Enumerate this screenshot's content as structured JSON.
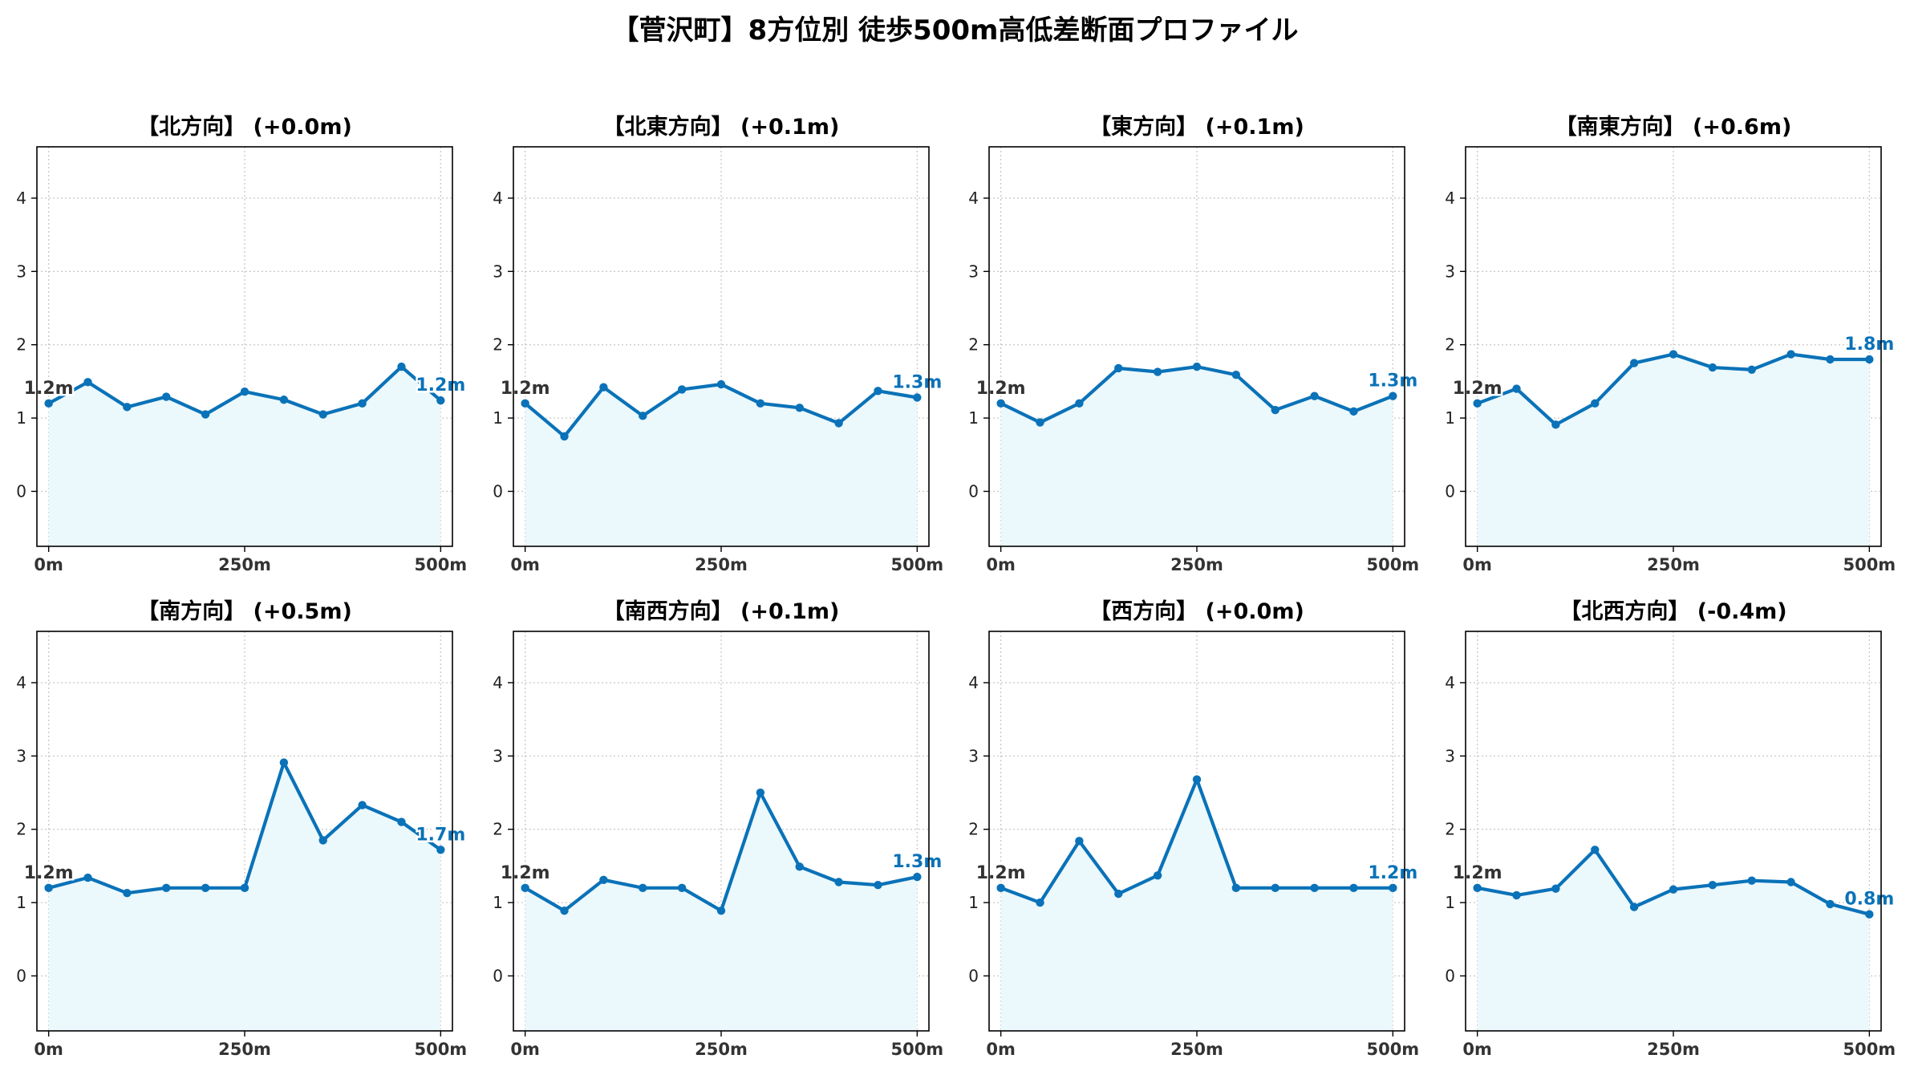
{
  "figure": {
    "title": "【菅沢町】8方位別 徒歩500m高低差断面プロファイル"
  },
  "chart_data": [
    {
      "type": "line",
      "title": "【北方向】 (+0.0m)",
      "x": [
        0,
        50,
        100,
        150,
        200,
        250,
        300,
        350,
        400,
        450,
        500
      ],
      "values": [
        1.2,
        1.49,
        1.15,
        1.29,
        1.05,
        1.36,
        1.25,
        1.05,
        1.2,
        1.7,
        1.24
      ],
      "start_label": "1.2m",
      "end_label": "1.2m",
      "xticks": [
        "0m",
        "250m",
        "500m"
      ],
      "yticks": [
        "0",
        "1",
        "2",
        "3",
        "4"
      ],
      "xlim": [
        -15,
        515
      ],
      "ylim": [
        -0.75,
        4.7
      ],
      "grid": true
    },
    {
      "type": "line",
      "title": "【北東方向】 (+0.1m)",
      "x": [
        0,
        50,
        100,
        150,
        200,
        250,
        300,
        350,
        400,
        450,
        500
      ],
      "values": [
        1.2,
        0.75,
        1.42,
        1.03,
        1.39,
        1.46,
        1.2,
        1.14,
        0.93,
        1.37,
        1.28
      ],
      "start_label": "1.2m",
      "end_label": "1.3m",
      "xticks": [
        "0m",
        "250m",
        "500m"
      ],
      "yticks": [
        "0",
        "1",
        "2",
        "3",
        "4"
      ],
      "xlim": [
        -15,
        515
      ],
      "ylim": [
        -0.75,
        4.7
      ],
      "grid": true
    },
    {
      "type": "line",
      "title": "【東方向】 (+0.1m)",
      "x": [
        0,
        50,
        100,
        150,
        200,
        250,
        300,
        350,
        400,
        450,
        500
      ],
      "values": [
        1.2,
        0.94,
        1.2,
        1.68,
        1.63,
        1.7,
        1.59,
        1.11,
        1.3,
        1.09,
        1.3
      ],
      "start_label": "1.2m",
      "end_label": "1.3m",
      "xticks": [
        "0m",
        "250m",
        "500m"
      ],
      "yticks": [
        "0",
        "1",
        "2",
        "3",
        "4"
      ],
      "xlim": [
        -15,
        515
      ],
      "ylim": [
        -0.75,
        4.7
      ],
      "grid": true
    },
    {
      "type": "line",
      "title": "【南東方向】 (+0.6m)",
      "x": [
        0,
        50,
        100,
        150,
        200,
        250,
        300,
        350,
        400,
        450,
        500
      ],
      "values": [
        1.2,
        1.4,
        0.91,
        1.2,
        1.75,
        1.87,
        1.69,
        1.66,
        1.87,
        1.8,
        1.8
      ],
      "start_label": "1.2m",
      "end_label": "1.8m",
      "xticks": [
        "0m",
        "250m",
        "500m"
      ],
      "yticks": [
        "0",
        "1",
        "2",
        "3",
        "4"
      ],
      "xlim": [
        -15,
        515
      ],
      "ylim": [
        -0.75,
        4.7
      ],
      "grid": true
    },
    {
      "type": "line",
      "title": "【南方向】 (+0.5m)",
      "x": [
        0,
        50,
        100,
        150,
        200,
        250,
        300,
        350,
        400,
        450,
        500
      ],
      "values": [
        1.2,
        1.34,
        1.13,
        1.2,
        1.2,
        1.2,
        2.91,
        1.85,
        2.33,
        2.1,
        1.72
      ],
      "start_label": "1.2m",
      "end_label": "1.7m",
      "xticks": [
        "0m",
        "250m",
        "500m"
      ],
      "yticks": [
        "0",
        "1",
        "2",
        "3",
        "4"
      ],
      "xlim": [
        -15,
        515
      ],
      "ylim": [
        -0.75,
        4.7
      ],
      "grid": true
    },
    {
      "type": "line",
      "title": "【南西方向】 (+0.1m)",
      "x": [
        0,
        50,
        100,
        150,
        200,
        250,
        300,
        350,
        400,
        450,
        500
      ],
      "values": [
        1.2,
        0.89,
        1.31,
        1.2,
        1.2,
        0.89,
        2.5,
        1.49,
        1.28,
        1.24,
        1.35
      ],
      "start_label": "1.2m",
      "end_label": "1.3m",
      "xticks": [
        "0m",
        "250m",
        "500m"
      ],
      "yticks": [
        "0",
        "1",
        "2",
        "3",
        "4"
      ],
      "xlim": [
        -15,
        515
      ],
      "ylim": [
        -0.75,
        4.7
      ],
      "grid": true
    },
    {
      "type": "line",
      "title": "【西方向】 (+0.0m)",
      "x": [
        0,
        50,
        100,
        150,
        200,
        250,
        300,
        350,
        400,
        450,
        500
      ],
      "values": [
        1.2,
        1.0,
        1.84,
        1.12,
        1.37,
        2.68,
        1.2,
        1.2,
        1.2,
        1.2,
        1.2
      ],
      "start_label": "1.2m",
      "end_label": "1.2m",
      "xticks": [
        "0m",
        "250m",
        "500m"
      ],
      "yticks": [
        "0",
        "1",
        "2",
        "3",
        "4"
      ],
      "xlim": [
        -15,
        515
      ],
      "ylim": [
        -0.75,
        4.7
      ],
      "grid": true
    },
    {
      "type": "line",
      "title": "【北西方向】 (-0.4m)",
      "x": [
        0,
        50,
        100,
        150,
        200,
        250,
        300,
        350,
        400,
        450,
        500
      ],
      "values": [
        1.2,
        1.1,
        1.19,
        1.72,
        0.94,
        1.18,
        1.24,
        1.3,
        1.28,
        0.98,
        0.84
      ],
      "start_label": "1.2m",
      "end_label": "0.8m",
      "xticks": [
        "0m",
        "250m",
        "500m"
      ],
      "yticks": [
        "0",
        "1",
        "2",
        "3",
        "4"
      ],
      "xlim": [
        -15,
        515
      ],
      "ylim": [
        -0.75,
        4.7
      ],
      "grid": true
    }
  ]
}
